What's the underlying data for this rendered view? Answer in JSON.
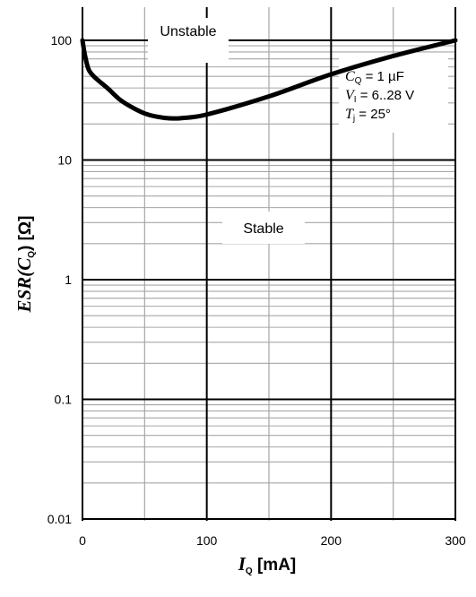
{
  "chart_data": {
    "type": "line",
    "x": [
      0,
      2,
      5,
      10,
      20,
      30,
      40,
      50,
      60,
      70,
      80,
      100,
      150,
      200,
      250,
      300
    ],
    "series": [
      {
        "values": [
          100,
          75,
          57,
          49,
          40,
          32,
          27.5,
          24.5,
          23,
          22.3,
          22.4,
          24,
          34,
          52,
          74,
          100
        ]
      }
    ],
    "xlabel": {
      "symbol": "I",
      "sub": "Q",
      "unit": " [mA]"
    },
    "ylabel": {
      "prefix": "ESR(",
      "symbol": "C",
      "sub": "Q",
      "suffix": ") [Ω]"
    },
    "xlim": [
      0,
      300
    ],
    "ylim": [
      0.01,
      200
    ],
    "yscale": "log",
    "x_ticks": [
      "0",
      "100",
      "200",
      "300"
    ],
    "y_ticks": [
      "0.01",
      "0.1",
      "1",
      "10",
      "100"
    ],
    "grid": true,
    "line_color": "#000000",
    "annotations": {
      "unstable": "Unstable",
      "stable": "Stable",
      "conditions": [
        {
          "symbol": "C",
          "sub": "Q",
          "text": " = 1 µF"
        },
        {
          "symbol": "V",
          "sub": "I",
          "text": " = 6..28 V"
        },
        {
          "symbol": "T",
          "sub": "j",
          "text": " = 25°"
        }
      ]
    }
  }
}
